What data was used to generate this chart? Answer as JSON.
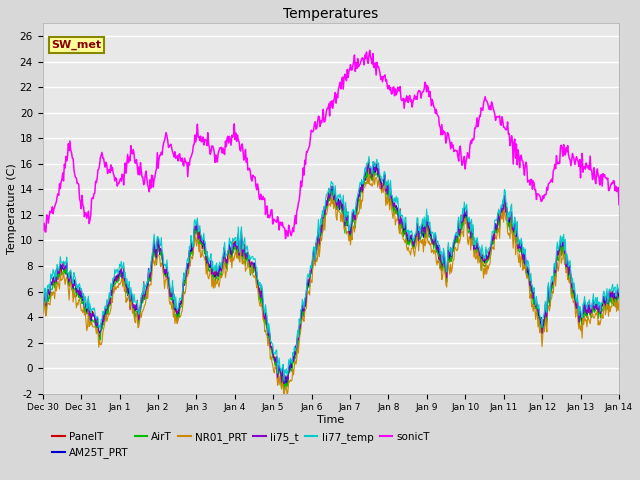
{
  "title": "Temperatures",
  "xlabel": "Time",
  "ylabel": "Temperature (C)",
  "ylim": [
    -2,
    27
  ],
  "yticks": [
    -2,
    0,
    2,
    4,
    6,
    8,
    10,
    12,
    14,
    16,
    18,
    20,
    22,
    24,
    26
  ],
  "x_labels": [
    "Dec 30",
    "Dec 31",
    "Jan 1",
    "Jan 2",
    "Jan 3",
    "Jan 4",
    "Jan 5",
    "Jan 6",
    "Jan 7",
    "Jan 8",
    "Jan 9",
    "Jan 10",
    "Jan 11",
    "Jan 12",
    "Jan 13",
    "Jan 14"
  ],
  "annotation_text": "SW_met",
  "series_colors": {
    "PanelT": "#cc0000",
    "AM25T_PRT": "#0000cc",
    "AirT": "#00bb00",
    "NR01_PRT": "#cc8800",
    "li75_t": "#8800cc",
    "li77_temp": "#00cccc",
    "sonicT": "#ff00ff"
  },
  "legend_labels": [
    "PanelT",
    "AM25T_PRT",
    "AirT",
    "NR01_PRT",
    "li75_t",
    "li77_temp",
    "sonicT"
  ],
  "background_color": "#d8d8d8",
  "plot_bg_color": "#e8e8e8"
}
